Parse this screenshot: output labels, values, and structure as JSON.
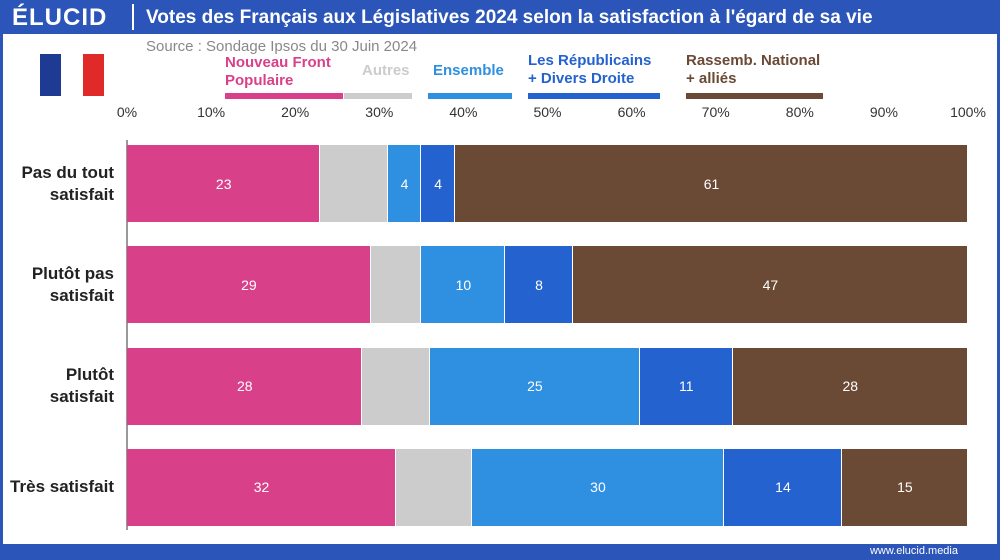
{
  "brand": "ÉLUCID",
  "footer": "www.elucid.media",
  "chart_data": {
    "type": "stacked-bar-horizontal",
    "title": "Votes des Français aux Législatives 2024 selon la satisfaction à l'égard de sa vie",
    "subtitle": "Source : Sondage Ipsos du 30 Juin 2024",
    "categories": [
      "Pas du tout satisfait",
      "Plutôt pas satisfait",
      "Plutôt satisfait",
      "Très satisfait"
    ],
    "series": [
      {
        "name": "Nouveau Front Populaire",
        "color": "#d9408a",
        "data_labels": true,
        "values": [
          23,
          29,
          28,
          32
        ]
      },
      {
        "name": "Autres",
        "color": "#cccccc",
        "data_labels": false,
        "values": [
          8,
          6,
          8,
          9
        ]
      },
      {
        "name": "Ensemble",
        "color": "#2f8fe0",
        "data_labels": true,
        "values": [
          4,
          10,
          25,
          30
        ]
      },
      {
        "name": "Les Républicains + Divers Droite",
        "color": "#2462cf",
        "data_labels": true,
        "values": [
          4,
          8,
          11,
          14
        ]
      },
      {
        "name": "Rassemb. National + alliés",
        "color": "#6b4a35",
        "data_labels": true,
        "values": [
          61,
          47,
          28,
          15
        ]
      }
    ],
    "xlim": [
      0,
      100
    ],
    "xticks": [
      {
        "value": 0,
        "label": "0%"
      },
      {
        "value": 10,
        "label": "10%"
      },
      {
        "value": 20,
        "label": "20%"
      },
      {
        "value": 30,
        "label": "30%"
      },
      {
        "value": 40,
        "label": "40%"
      },
      {
        "value": 50,
        "label": "50%"
      },
      {
        "value": 60,
        "label": "60%"
      },
      {
        "value": 70,
        "label": "70%"
      },
      {
        "value": 80,
        "label": "80%"
      },
      {
        "value": 90,
        "label": "90%"
      },
      {
        "value": 100,
        "label": "100%"
      }
    ],
    "grid": false
  }
}
